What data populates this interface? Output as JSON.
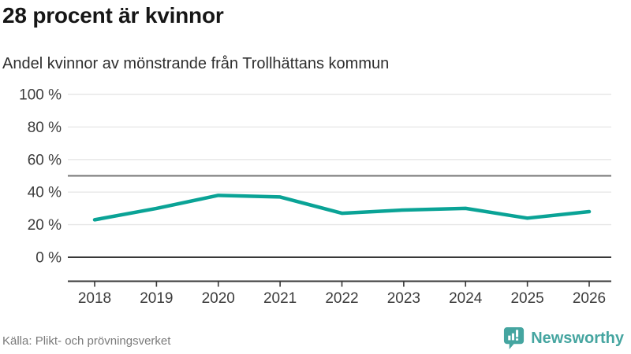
{
  "header": {
    "title": "28 procent är kvinnor",
    "subtitle": "Andel kvinnor av mönstrande från Trollhättans kommun"
  },
  "chart_data": {
    "type": "line",
    "title": "28 procent är kvinnor",
    "subtitle": "Andel kvinnor av mönstrande från Trollhättans kommun",
    "categories": [
      "2018",
      "2019",
      "2020",
      "2021",
      "2022",
      "2023",
      "2024",
      "2025",
      "2026"
    ],
    "series": [
      {
        "name": "Andel kvinnor av mönstrande (%)",
        "values": [
          23,
          30,
          38,
          37,
          27,
          29,
          30,
          24,
          28
        ]
      }
    ],
    "xlabel": "",
    "ylabel": "",
    "ylim": [
      0,
      100
    ],
    "yticks": [
      0,
      20,
      40,
      60,
      80,
      100
    ],
    "ytick_suffix": " %",
    "reference_line": 50,
    "grid": true,
    "legend": false
  },
  "footer": {
    "source": "Källa: Plikt- och prövningsverket",
    "brand": "Newsworthy"
  },
  "colors": {
    "line": "#0aa396",
    "brand_teal": "#45a5a0",
    "grid": "#e7e7e7",
    "reference_line": "#757575",
    "axis": "#383838",
    "tick_text": "#3c3c3c"
  }
}
